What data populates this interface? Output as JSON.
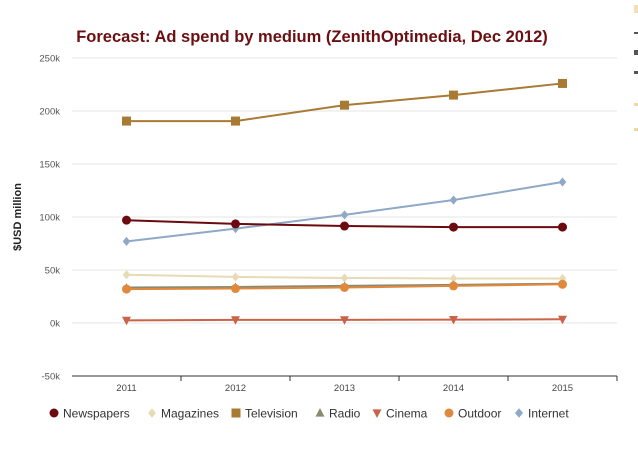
{
  "chart_data": {
    "type": "line",
    "title": "Forecast: Ad spend by medium (ZenithOptimedia, Dec 2012)",
    "xlabel": "",
    "ylabel": "$USD million",
    "categories": [
      "2011",
      "2012",
      "2013",
      "2014",
      "2015"
    ],
    "ylim": [
      -50000,
      250000
    ],
    "yticks": [
      {
        "value": 250000,
        "label": "250k"
      },
      {
        "value": 200000,
        "label": "200k"
      },
      {
        "value": 150000,
        "label": "150k"
      },
      {
        "value": 100000,
        "label": "100k"
      },
      {
        "value": 50000,
        "label": "50k"
      },
      {
        "value": 0,
        "label": "0k"
      },
      {
        "value": -50000,
        "label": "-50k"
      }
    ],
    "grid": true,
    "legend": "bottom",
    "series": [
      {
        "name": "Newspapers",
        "color": "#6b0a0f",
        "marker": "circle",
        "values": [
          97000,
          93500,
          91500,
          90500,
          90500
        ]
      },
      {
        "name": "Magazines",
        "color": "#e6dbb5",
        "marker": "diamond",
        "values": [
          45500,
          43500,
          42500,
          42000,
          42000
        ]
      },
      {
        "name": "Television",
        "color": "#a97a33",
        "marker": "square",
        "values": [
          190500,
          190500,
          205500,
          215000,
          226000
        ]
      },
      {
        "name": "Radio",
        "color": "#8a8a72",
        "marker": "triangle",
        "values": [
          33500,
          34000,
          35000,
          36000,
          37000
        ]
      },
      {
        "name": "Cinema",
        "color": "#c9644a",
        "marker": "triangle-down",
        "values": [
          2500,
          3000,
          3000,
          3200,
          3500
        ]
      },
      {
        "name": "Outdoor",
        "color": "#e0893d",
        "marker": "circle",
        "values": [
          32000,
          32500,
          33500,
          35000,
          36500
        ]
      },
      {
        "name": "Internet",
        "color": "#8fa8c8",
        "marker": "diamond",
        "values": [
          77000,
          89000,
          102000,
          116000,
          133000
        ]
      }
    ]
  }
}
